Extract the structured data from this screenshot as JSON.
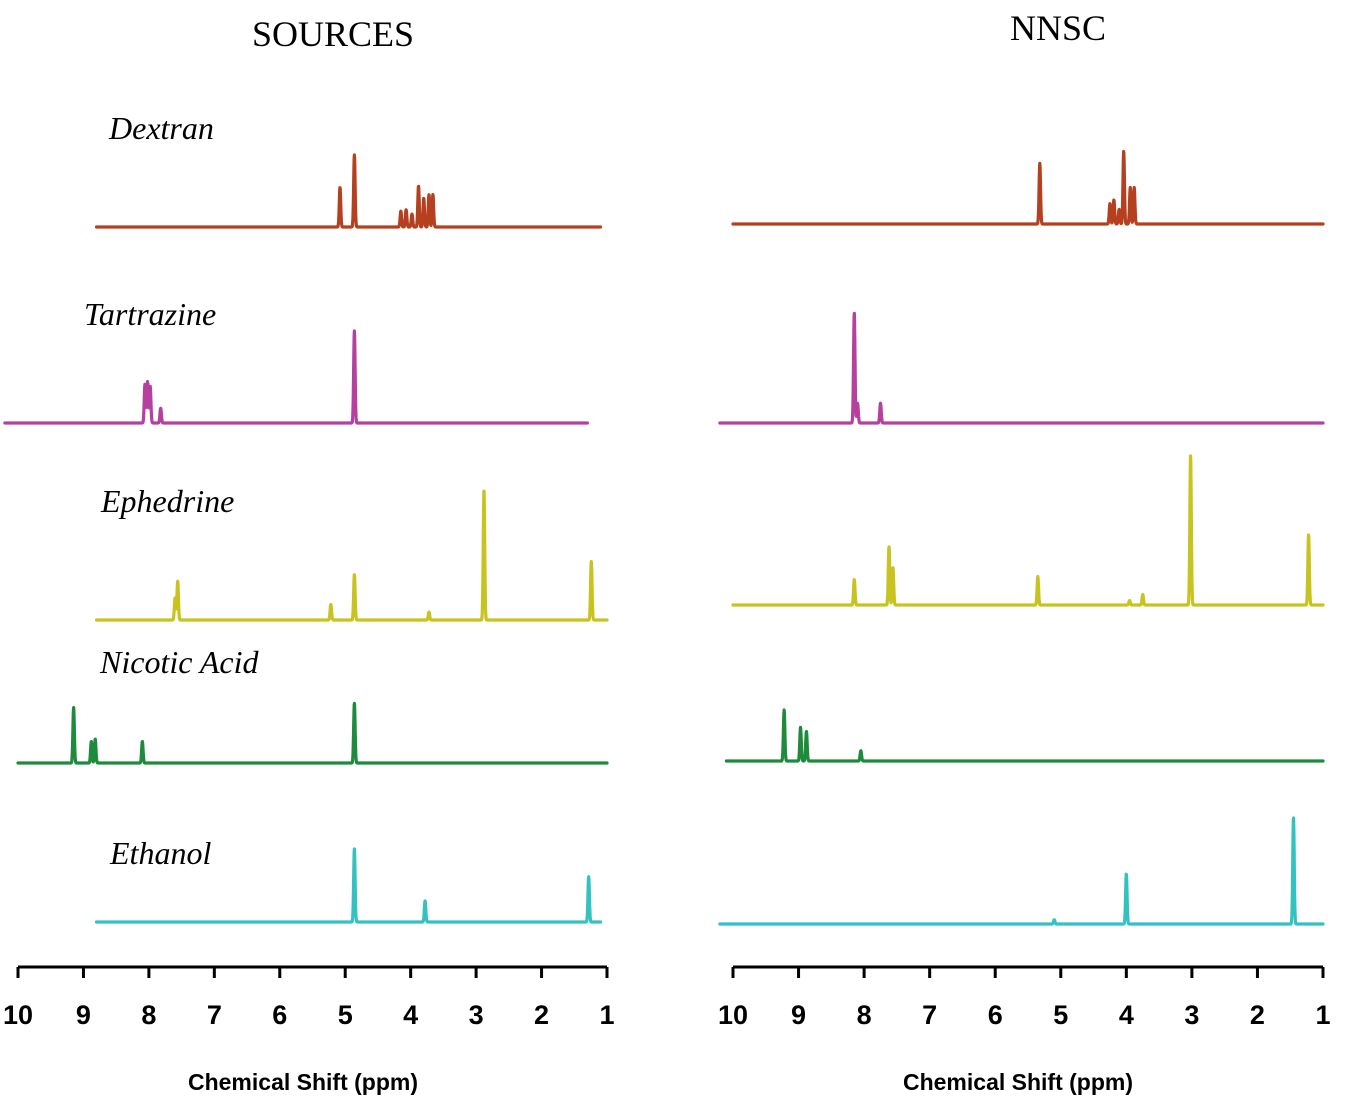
{
  "chart_data": [
    {
      "type": "line",
      "title": "SOURCES",
      "xlabel": "Chemical Shift (ppm)",
      "xlim": [
        10,
        1
      ],
      "x_reversed": true,
      "ticks": [
        10,
        9,
        8,
        7,
        6,
        5,
        4,
        3,
        2,
        1
      ],
      "tick_labels": [
        "10",
        "9",
        "8",
        "7",
        "6",
        "5",
        "4",
        "3",
        "2",
        "1"
      ],
      "series": [
        {
          "name": "Dextran",
          "color": "#b5401f",
          "x_range": [
            8.8,
            1.1
          ],
          "peaks": [
            {
              "ppm": 5.08,
              "height": 0.55
            },
            {
              "ppm": 4.86,
              "height": 1.0
            },
            {
              "ppm": 4.15,
              "height": 0.22
            },
            {
              "ppm": 4.07,
              "height": 0.24
            },
            {
              "ppm": 3.98,
              "height": 0.18
            },
            {
              "ppm": 3.88,
              "height": 0.57
            },
            {
              "ppm": 3.8,
              "height": 0.4
            },
            {
              "ppm": 3.72,
              "height": 0.45
            },
            {
              "ppm": 3.66,
              "height": 0.45
            }
          ]
        },
        {
          "name": "Tartrazine",
          "color": "#b5409f",
          "x_range": [
            10.2,
            1.3
          ],
          "peaks": [
            {
              "ppm": 8.06,
              "height": 0.42
            },
            {
              "ppm": 8.02,
              "height": 0.45
            },
            {
              "ppm": 7.98,
              "height": 0.4
            },
            {
              "ppm": 7.82,
              "height": 0.16
            },
            {
              "ppm": 4.86,
              "height": 1.0
            }
          ]
        },
        {
          "name": "Ephedrine",
          "color": "#c8c31f",
          "x_range": [
            8.8,
            1.0
          ],
          "peaks": [
            {
              "ppm": 7.6,
              "height": 0.17
            },
            {
              "ppm": 7.56,
              "height": 0.3
            },
            {
              "ppm": 5.22,
              "height": 0.12
            },
            {
              "ppm": 4.86,
              "height": 0.35
            },
            {
              "ppm": 3.72,
              "height": 0.06
            },
            {
              "ppm": 2.88,
              "height": 1.0
            },
            {
              "ppm": 1.24,
              "height": 0.45
            }
          ]
        },
        {
          "name": "Nicotic Acid",
          "color": "#1e8a3c",
          "x_range": [
            10.0,
            1.0
          ],
          "peaks": [
            {
              "ppm": 9.15,
              "height": 0.93
            },
            {
              "ppm": 8.88,
              "height": 0.36
            },
            {
              "ppm": 8.82,
              "height": 0.4
            },
            {
              "ppm": 8.1,
              "height": 0.36
            },
            {
              "ppm": 4.86,
              "height": 1.0
            }
          ]
        },
        {
          "name": "Ethanol",
          "color": "#33c2c2",
          "x_range": [
            8.8,
            1.1
          ],
          "peaks": [
            {
              "ppm": 4.86,
              "height": 1.0
            },
            {
              "ppm": 3.78,
              "height": 0.29
            },
            {
              "ppm": 1.28,
              "height": 0.62
            }
          ]
        }
      ]
    },
    {
      "type": "line",
      "title": "NNSC",
      "xlabel": "Chemical Shift (ppm)",
      "xlim": [
        10,
        1
      ],
      "x_reversed": true,
      "ticks": [
        10,
        9,
        8,
        7,
        6,
        5,
        4,
        3,
        2,
        1
      ],
      "tick_labels": [
        "10",
        "9",
        "8",
        "7",
        "6",
        "5",
        "4",
        "3",
        "2",
        "1"
      ],
      "series": [
        {
          "name": "Dextran",
          "color": "#b5401f",
          "x_range": [
            10.0,
            1.0
          ],
          "peaks": [
            {
              "ppm": 5.32,
              "height": 0.83
            },
            {
              "ppm": 4.25,
              "height": 0.28
            },
            {
              "ppm": 4.19,
              "height": 0.33
            },
            {
              "ppm": 4.11,
              "height": 0.2
            },
            {
              "ppm": 4.04,
              "height": 1.0
            },
            {
              "ppm": 3.94,
              "height": 0.5
            },
            {
              "ppm": 3.88,
              "height": 0.5
            }
          ]
        },
        {
          "name": "Tartrazine",
          "color": "#b5409f",
          "x_range": [
            10.2,
            1.0
          ],
          "peaks": [
            {
              "ppm": 8.15,
              "height": 1.0
            },
            {
              "ppm": 8.1,
              "height": 0.18
            },
            {
              "ppm": 7.75,
              "height": 0.18
            }
          ]
        },
        {
          "name": "Ephedrine",
          "color": "#c8c31f",
          "x_range": [
            10.0,
            1.0
          ],
          "peaks": [
            {
              "ppm": 8.15,
              "height": 0.17
            },
            {
              "ppm": 7.62,
              "height": 0.39
            },
            {
              "ppm": 7.56,
              "height": 0.25
            },
            {
              "ppm": 5.35,
              "height": 0.19
            },
            {
              "ppm": 3.95,
              "height": 0.03
            },
            {
              "ppm": 3.75,
              "height": 0.07
            },
            {
              "ppm": 3.02,
              "height": 1.0
            },
            {
              "ppm": 1.22,
              "height": 0.47
            }
          ]
        },
        {
          "name": "Nicotic Acid",
          "color": "#1e8a3c",
          "x_range": [
            10.1,
            1.0
          ],
          "peaks": [
            {
              "ppm": 9.22,
              "height": 1.0
            },
            {
              "ppm": 8.97,
              "height": 0.66
            },
            {
              "ppm": 8.88,
              "height": 0.58
            },
            {
              "ppm": 8.05,
              "height": 0.2
            }
          ]
        },
        {
          "name": "Ethanol",
          "color": "#33c2c2",
          "x_range": [
            10.2,
            1.0
          ],
          "peaks": [
            {
              "ppm": 5.1,
              "height": 0.04
            },
            {
              "ppm": 4.0,
              "height": 0.47
            },
            {
              "ppm": 1.45,
              "height": 1.0
            }
          ]
        }
      ]
    }
  ]
}
